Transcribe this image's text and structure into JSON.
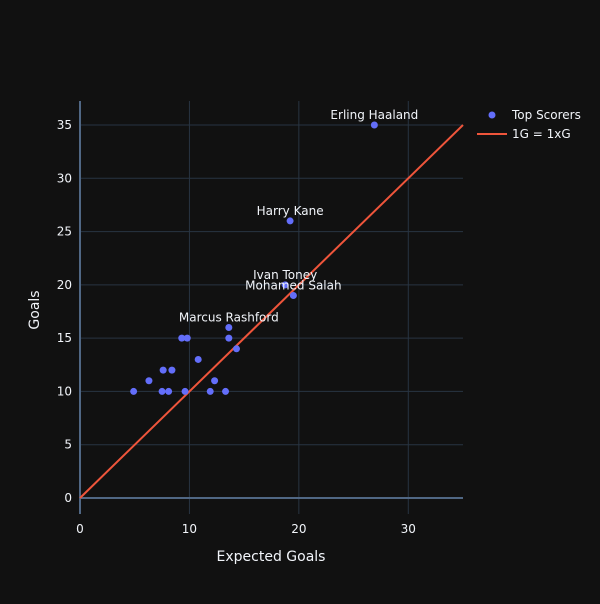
{
  "chart_data": {
    "type": "scatter",
    "xlabel": "Expected Goals",
    "ylabel": "Goals",
    "xlim": [
      0,
      35
    ],
    "ylim": [
      -1.5,
      37.2
    ],
    "xticks": [
      0,
      10,
      20,
      30
    ],
    "yticks": [
      0,
      5,
      10,
      15,
      20,
      25,
      30,
      35
    ],
    "grid": true,
    "legend_position": "top-right",
    "series": [
      {
        "name": "Top Scorers",
        "type": "scatter",
        "color": "#636efa",
        "points": [
          {
            "x": 26.9,
            "y": 35,
            "label": "Erling Haaland"
          },
          {
            "x": 19.2,
            "y": 26,
            "label": "Harry Kane"
          },
          {
            "x": 18.75,
            "y": 20,
            "label": "Ivan Toney"
          },
          {
            "x": 19.5,
            "y": 19,
            "label": "Mohamed Salah"
          },
          {
            "x": 13.6,
            "y": 16,
            "label": "Marcus Rashford"
          },
          {
            "x": 13.6,
            "y": 15
          },
          {
            "x": 9.3,
            "y": 15
          },
          {
            "x": 9.8,
            "y": 15
          },
          {
            "x": 14.3,
            "y": 14
          },
          {
            "x": 10.8,
            "y": 13
          },
          {
            "x": 7.6,
            "y": 12
          },
          {
            "x": 8.4,
            "y": 12
          },
          {
            "x": 6.3,
            "y": 11
          },
          {
            "x": 12.3,
            "y": 11
          },
          {
            "x": 4.9,
            "y": 10
          },
          {
            "x": 7.5,
            "y": 10
          },
          {
            "x": 8.1,
            "y": 10
          },
          {
            "x": 9.6,
            "y": 10
          },
          {
            "x": 11.9,
            "y": 10
          },
          {
            "x": 13.3,
            "y": 10
          }
        ]
      },
      {
        "name": "1G = 1xG",
        "type": "line",
        "color": "#ef553b",
        "points": [
          {
            "x": 0,
            "y": 0
          },
          {
            "x": 35,
            "y": 35
          }
        ]
      }
    ]
  }
}
